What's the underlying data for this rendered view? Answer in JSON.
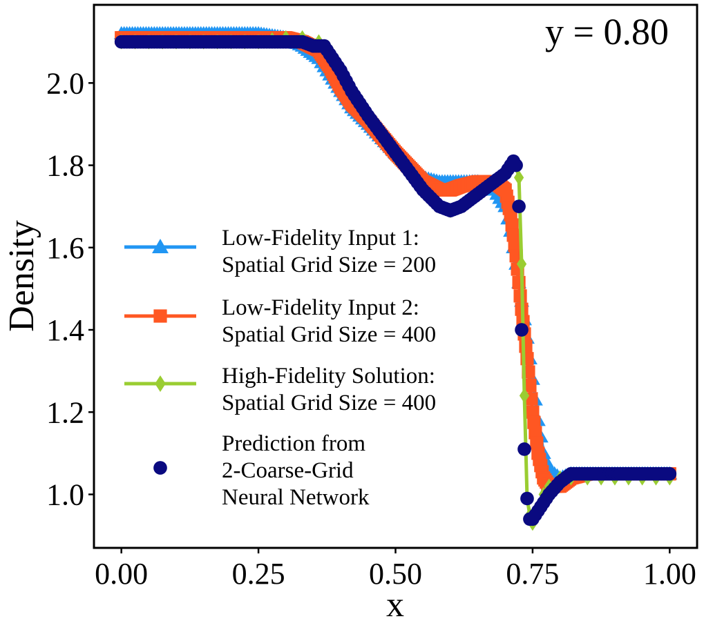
{
  "chart_data": {
    "type": "line",
    "title": "",
    "annotation": "y = 0.80",
    "xlabel": "x",
    "ylabel": "Density",
    "xlim": [
      -0.05,
      1.05
    ],
    "ylim": [
      0.87,
      2.19
    ],
    "xticks": [
      "0.00",
      "0.25",
      "0.50",
      "0.75",
      "1.00"
    ],
    "xtick_values": [
      0.0,
      0.25,
      0.5,
      0.75,
      1.0
    ],
    "yticks": [
      "1.0",
      "1.2",
      "1.4",
      "1.6",
      "1.8",
      "2.0"
    ],
    "ytick_values": [
      1.0,
      1.2,
      1.4,
      1.6,
      1.8,
      2.0
    ],
    "grid": false,
    "legend_position": "center-left",
    "series": [
      {
        "name": "Low-Fidelity Input 1:\nSpatial Grid Size = 200",
        "legend_lines": [
          "Low-Fidelity Input 1:",
          "Spatial Grid Size = 200"
        ],
        "color": "#2196F3",
        "marker": "triangle",
        "x": [
          0.0,
          0.05,
          0.1,
          0.15,
          0.2,
          0.25,
          0.3,
          0.33,
          0.36,
          0.38,
          0.4,
          0.42,
          0.45,
          0.5,
          0.55,
          0.58,
          0.6,
          0.62,
          0.65,
          0.68,
          0.7,
          0.71,
          0.72,
          0.73,
          0.74,
          0.75,
          0.76,
          0.77,
          0.78,
          0.8,
          0.82,
          0.85,
          0.9,
          0.95,
          1.0
        ],
        "y": [
          2.12,
          2.12,
          2.12,
          2.12,
          2.12,
          2.12,
          2.11,
          2.09,
          2.06,
          2.02,
          1.98,
          1.94,
          1.9,
          1.83,
          1.77,
          1.76,
          1.76,
          1.76,
          1.76,
          1.74,
          1.7,
          1.64,
          1.56,
          1.47,
          1.38,
          1.28,
          1.18,
          1.1,
          1.06,
          1.04,
          1.05,
          1.05,
          1.05,
          1.05,
          1.05
        ]
      },
      {
        "name": "Low-Fidelity Input 2:\nSpatial Grid Size = 400",
        "legend_lines": [
          "Low-Fidelity Input 2:",
          "Spatial Grid Size = 400"
        ],
        "color": "#FF5722",
        "marker": "square",
        "x": [
          0.0,
          0.05,
          0.1,
          0.15,
          0.2,
          0.25,
          0.3,
          0.33,
          0.36,
          0.38,
          0.4,
          0.42,
          0.45,
          0.5,
          0.55,
          0.58,
          0.6,
          0.62,
          0.65,
          0.68,
          0.7,
          0.71,
          0.72,
          0.73,
          0.74,
          0.75,
          0.76,
          0.77,
          0.78,
          0.8,
          0.82,
          0.85,
          0.9,
          0.95,
          1.0
        ],
        "y": [
          2.11,
          2.11,
          2.11,
          2.11,
          2.11,
          2.11,
          2.11,
          2.1,
          2.08,
          2.04,
          1.99,
          1.95,
          1.91,
          1.83,
          1.76,
          1.74,
          1.74,
          1.75,
          1.76,
          1.76,
          1.74,
          1.68,
          1.58,
          1.45,
          1.33,
          1.2,
          1.1,
          1.04,
          1.02,
          1.02,
          1.04,
          1.05,
          1.05,
          1.05,
          1.05
        ]
      },
      {
        "name": "High-Fidelity Solution:\nSpatial Grid Size = 400",
        "legend_lines": [
          "High-Fidelity Solution:",
          "Spatial Grid Size = 400"
        ],
        "color": "#9ACD32",
        "marker": "diamond",
        "x": [
          0.0,
          0.05,
          0.1,
          0.15,
          0.2,
          0.25,
          0.3,
          0.33,
          0.36,
          0.38,
          0.4,
          0.42,
          0.45,
          0.5,
          0.55,
          0.58,
          0.6,
          0.62,
          0.65,
          0.68,
          0.7,
          0.71,
          0.72,
          0.725,
          0.73,
          0.735,
          0.74,
          0.745,
          0.75,
          0.76,
          0.77,
          0.78,
          0.8,
          0.82,
          0.85,
          0.9,
          0.95,
          1.0
        ],
        "y": [
          2.1,
          2.1,
          2.1,
          2.1,
          2.1,
          2.1,
          2.11,
          2.11,
          2.1,
          2.08,
          2.03,
          1.97,
          1.91,
          1.82,
          1.74,
          1.7,
          1.69,
          1.7,
          1.73,
          1.76,
          1.78,
          1.8,
          1.8,
          1.77,
          1.56,
          1.24,
          0.99,
          0.95,
          0.93,
          0.96,
          1.0,
          1.02,
          1.04,
          1.04,
          1.04,
          1.04,
          1.04,
          1.04
        ]
      },
      {
        "name": "Prediction from\n2-Coarse-Grid\nNeural Network",
        "legend_lines": [
          "Prediction from",
          "2-Coarse-Grid",
          "Neural Network"
        ],
        "color": "#0A0A80",
        "marker": "circle",
        "x": [
          0.0,
          0.05,
          0.1,
          0.15,
          0.2,
          0.25,
          0.3,
          0.33,
          0.35,
          0.37,
          0.38,
          0.4,
          0.42,
          0.45,
          0.5,
          0.55,
          0.58,
          0.6,
          0.62,
          0.65,
          0.68,
          0.7,
          0.71,
          0.715,
          0.72,
          0.725,
          0.73,
          0.735,
          0.74,
          0.745,
          0.75,
          0.76,
          0.77,
          0.78,
          0.8,
          0.82,
          0.85,
          0.9,
          0.95,
          1.0
        ],
        "y": [
          2.1,
          2.1,
          2.1,
          2.1,
          2.1,
          2.1,
          2.1,
          2.1,
          2.09,
          2.09,
          2.07,
          2.03,
          1.98,
          1.92,
          1.83,
          1.74,
          1.7,
          1.69,
          1.7,
          1.73,
          1.76,
          1.78,
          1.8,
          1.81,
          1.8,
          1.7,
          1.4,
          1.11,
          0.99,
          0.94,
          0.94,
          0.96,
          0.98,
          1.0,
          1.03,
          1.05,
          1.05,
          1.05,
          1.05,
          1.05
        ]
      }
    ]
  }
}
